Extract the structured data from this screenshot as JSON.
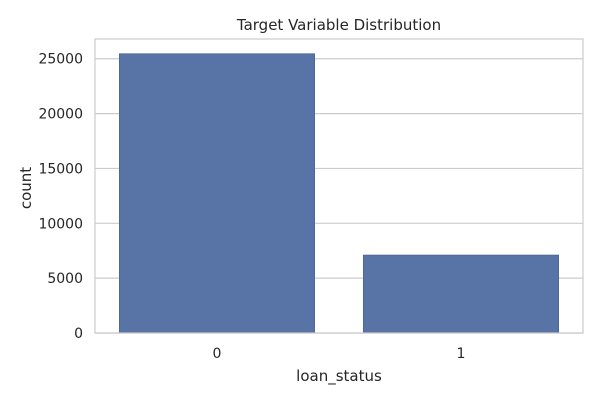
{
  "chart_data": {
    "type": "bar",
    "title": "Target Variable Distribution",
    "xlabel": "loan_status",
    "ylabel": "count",
    "categories": [
      "0",
      "1"
    ],
    "values": [
      25450,
      7100
    ],
    "ylim": [
      0,
      26800
    ],
    "yticks": [
      0,
      5000,
      10000,
      15000,
      20000,
      25000
    ],
    "ytick_labels": [
      "0",
      "5000",
      "10000",
      "15000",
      "20000",
      "25000"
    ],
    "grid": "y",
    "legend": "none",
    "colors": {
      "bar": "#5874a6",
      "bar_edge": "#4a6595",
      "grid": "#cccccc",
      "spine": "#cccccc",
      "text": "#262626",
      "background": "#ffffff"
    }
  }
}
